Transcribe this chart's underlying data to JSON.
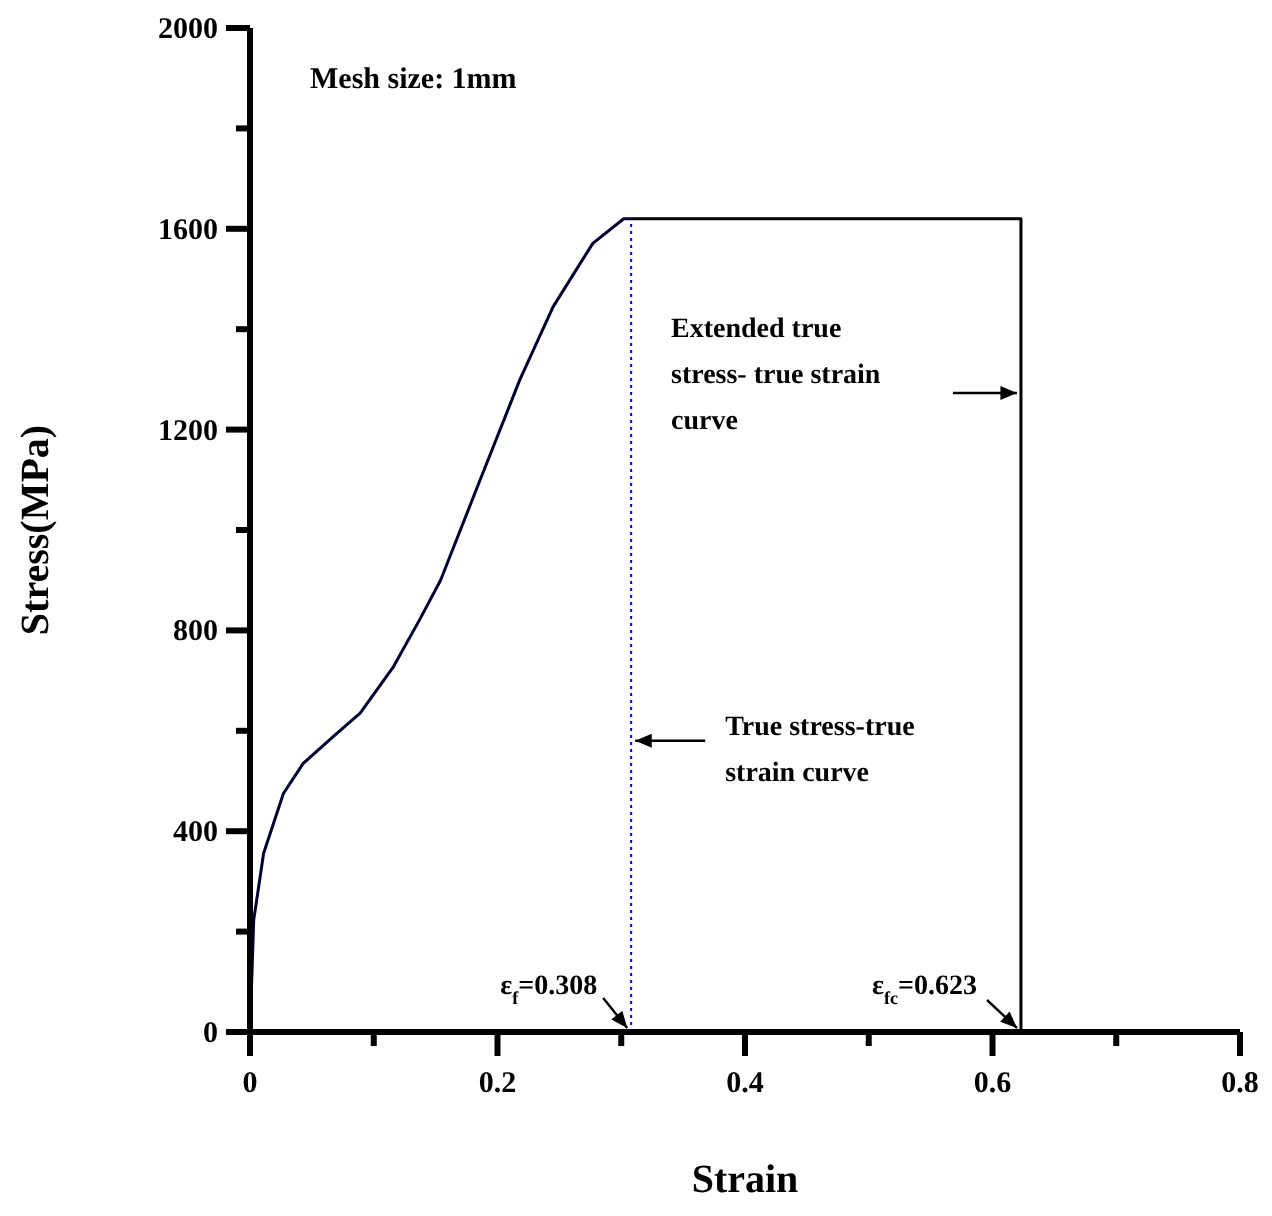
{
  "chart_data": {
    "type": "line",
    "title": "Mesh size: 1mm",
    "xlabel": "Strain",
    "ylabel": "Stress(MPa)",
    "xlim": [
      0,
      0.8
    ],
    "ylim": [
      0,
      2000
    ],
    "xticks": [
      0,
      {
        "value": 0.1,
        "label": null
      },
      0.2,
      {
        "value": 0.3,
        "label": null
      },
      0.4,
      {
        "value": 0.5,
        "label": null
      },
      0.6,
      {
        "value": 0.7,
        "label": null
      },
      0.8
    ],
    "yticks": [
      0,
      {
        "value": 200,
        "label": null
      },
      400,
      {
        "value": 600,
        "label": null
      },
      800,
      {
        "value": 1000,
        "label": null
      },
      1200,
      {
        "value": 1400,
        "label": null
      },
      1600,
      {
        "value": 1800,
        "label": null
      },
      2000
    ],
    "grid": false,
    "marker": "none",
    "line_style": "solid",
    "series": [
      {
        "color": "#000033",
        "x": [
          0,
          0.003,
          0.011,
          0.027,
          0.043,
          0.067,
          0.089,
          0.116,
          0.137,
          0.154,
          0.186,
          0.218,
          0.245,
          0.277,
          0.302,
          0.308
        ],
        "values": [
          0,
          223,
          356,
          475,
          535,
          588,
          635,
          728,
          821,
          900,
          1100,
          1299,
          1445,
          1571,
          1620,
          1620
        ]
      },
      {
        "color": "#000000",
        "x": [
          0.308,
          0.623,
          0.623
        ],
        "values": [
          1620,
          1620,
          0
        ]
      }
    ],
    "ref_lines": [
      {
        "axis": "x",
        "value": 0.308,
        "color": "#0000ff",
        "line_style": "dotted"
      }
    ],
    "annotations": [
      "Extended true\nstress- true strain\ncurve",
      "True stress-true\nstrain curve",
      "ε$_{f}$=0.308",
      "ε$_{fc}$=0.623"
    ]
  }
}
